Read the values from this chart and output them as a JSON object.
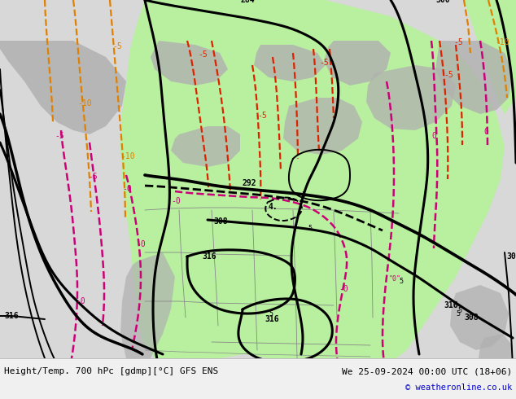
{
  "title_left": "Height/Temp. 700 hPc [gdmp][°C] GFS ENS",
  "title_right": "We 25-09-2024 00:00 UTC (18+06)",
  "copyright": "© weatheronline.co.uk",
  "bg_color": "#e0e0e0",
  "ocean_color": "#d8d8d8",
  "green_color": "#b8f0a0",
  "gray_land_color": "#b0b0b0",
  "font_family": "DejaVu Sans Mono",
  "bottom_text_color": "#000000",
  "copyright_color": "#0000cc",
  "figsize": [
    6.34,
    4.9
  ],
  "dpi": 100,
  "map_area": [
    0,
    50,
    634,
    440
  ],
  "black_lw": 2.2,
  "black_thin_lw": 1.4,
  "temp_lw": 1.6,
  "orange_color": "#e08000",
  "red_color": "#dd2200",
  "magenta_color": "#cc0077"
}
